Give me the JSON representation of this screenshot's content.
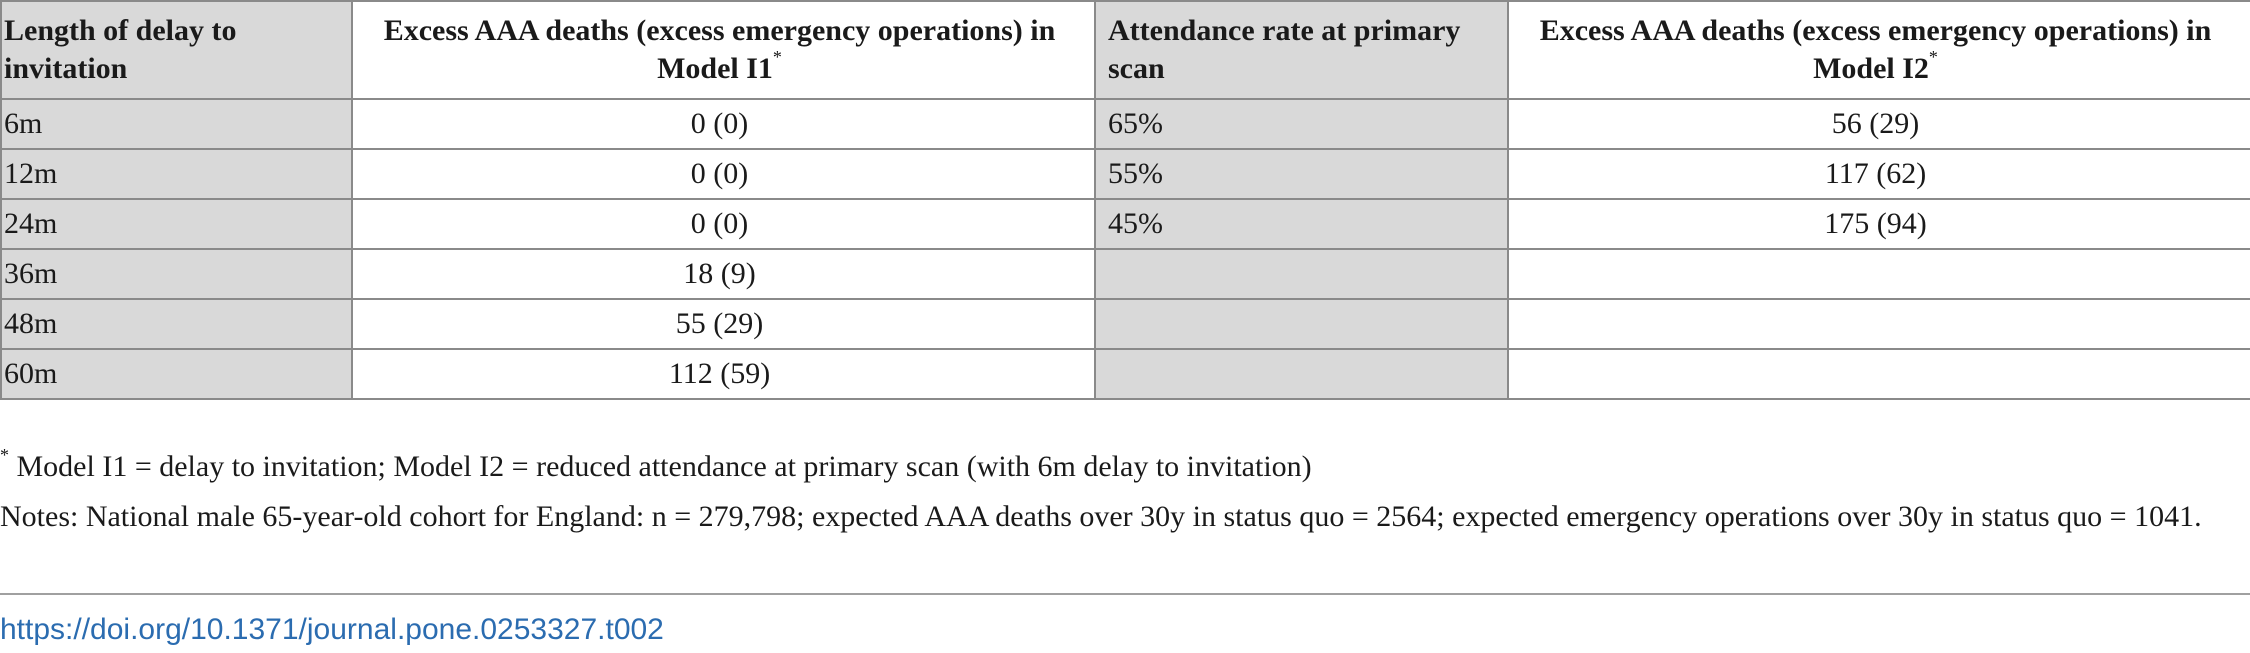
{
  "table": {
    "headers": [
      {
        "text": "Length of delay to invitation",
        "sup": ""
      },
      {
        "text": "Excess AAA deaths (excess emergency operations) in Model I1",
        "sup": "*"
      },
      {
        "text": "Attendance rate at primary scan",
        "sup": ""
      },
      {
        "text": "Excess AAA deaths (excess emergency operations) in Model I2",
        "sup": "*"
      }
    ],
    "rows": [
      [
        "6m",
        "0 (0)",
        "65%",
        "56 (29)"
      ],
      [
        "12m",
        "0 (0)",
        "55%",
        "117 (62)"
      ],
      [
        "24m",
        "0 (0)",
        "45%",
        "175 (94)"
      ],
      [
        "36m",
        "18 (9)",
        "",
        ""
      ],
      [
        "48m",
        "55 (29)",
        "",
        ""
      ],
      [
        "60m",
        "112 (59)",
        "",
        ""
      ]
    ]
  },
  "footnotes": {
    "model_note_marker": "*",
    "model_note": " Model I1 = delay to invitation; Model I2 = reduced attendance at primary scan (with 6m delay to invitation)",
    "notes": "Notes: National male 65-year-old cohort for England: n = 279,798; expected AAA deaths over 30y in status quo = 2564; expected emergency operations over 30y in status quo = 1041."
  },
  "doi_link": "https://doi.org/10.1371/journal.pone.0253327.t002"
}
